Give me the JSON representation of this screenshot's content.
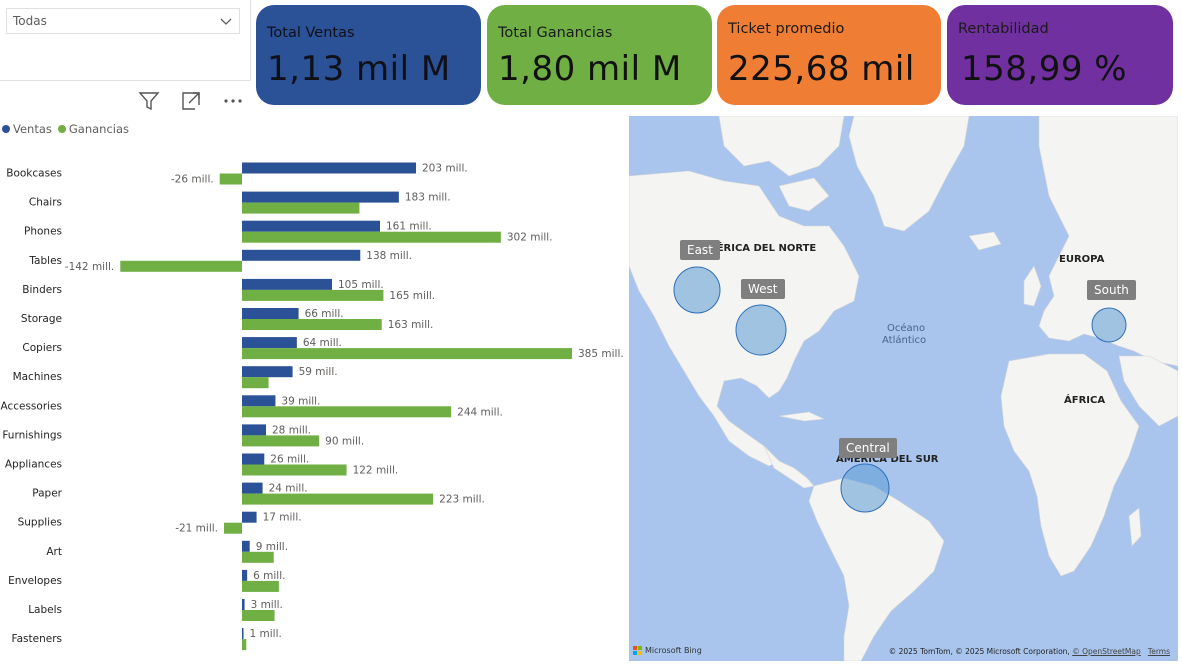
{
  "slicer": {
    "value": "Todas"
  },
  "kpis": [
    {
      "label": "Total Ventas",
      "value": "1,13 mil M",
      "color": "#2b5196"
    },
    {
      "label": "Total Ganancias",
      "value": "1,80 mil M",
      "color": "#6faf44"
    },
    {
      "label": "Ticket promedio",
      "value": "225,68 mil",
      "color": "#ef7d33"
    },
    {
      "label": "Rentabilidad",
      "value": "158,99 %",
      "color": "#7030a0"
    }
  ],
  "visual_header_icons": [
    "filter-icon",
    "focus-mode-icon",
    "more-options-icon"
  ],
  "legend": {
    "ventas": "Ventas",
    "ganancias": "Ganancias",
    "ventas_color": "#2b5196",
    "ganancias_color": "#6faf44"
  },
  "chart_data": {
    "type": "bar",
    "orientation": "horizontal",
    "categories": [
      "Bookcases",
      "Chairs",
      "Phones",
      "Tables",
      "Binders",
      "Storage",
      "Copiers",
      "Machines",
      "Accessories",
      "Furnishings",
      "Appliances",
      "Paper",
      "Supplies",
      "Art",
      "Envelopes",
      "Labels",
      "Fasteners"
    ],
    "series": [
      {
        "name": "Ventas",
        "color": "#2b5196",
        "values": [
          203,
          183,
          161,
          138,
          105,
          66,
          64,
          59,
          39,
          28,
          26,
          24,
          17,
          9,
          6,
          3,
          1
        ],
        "labels": [
          "203 mill.",
          "183 mill.",
          "161 mill.",
          "138 mill.",
          "105 mill.",
          "66 mill.",
          "64 mill.",
          "59 mill.",
          "39 mill.",
          "28 mill.",
          "26 mill.",
          "24 mill.",
          "17 mill.",
          "9 mill.",
          "6 mill.",
          "3 mill.",
          "1 mill."
        ]
      },
      {
        "name": "Ganancias",
        "color": "#6faf44",
        "values": [
          -26,
          137,
          302,
          -142,
          165,
          163,
          385,
          31,
          244,
          90,
          122,
          223,
          -21,
          37,
          43,
          38,
          5
        ],
        "labels": [
          "-26 mill.",
          "",
          "302 mill.",
          "-142 mill.",
          "165 mill.",
          "163 mill.",
          "385 mill.",
          "",
          "244 mill.",
          "90 mill.",
          "122 mill.",
          "223 mill.",
          "-21 mill.",
          "",
          "",
          "",
          ""
        ]
      }
    ],
    "xlim": [
      -142,
      385
    ],
    "legend_position": "top-left"
  },
  "map": {
    "regions": [
      "AMÉRICA DEL NORTE",
      "EUROPA",
      "ÁFRICA",
      "AMÉRICA DEL SUR"
    ],
    "ocean": [
      "Océano",
      "Atlántico"
    ],
    "bubbles": [
      "East",
      "West",
      "South",
      "Central"
    ],
    "brand": "Microsoft Bing",
    "copyright": "© 2025 TomTom, © 2025 Microsoft Corporation, ",
    "osm_link": "© OpenStreetMap",
    "terms_link": "Terms"
  }
}
